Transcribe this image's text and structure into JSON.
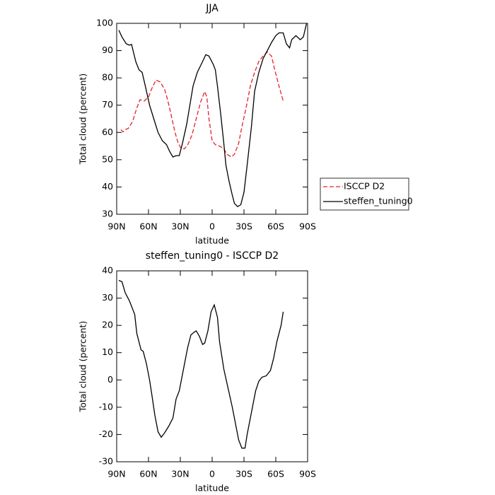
{
  "chart_data": [
    {
      "type": "line",
      "title": "JJA",
      "xlabel": "latitude",
      "ylabel": "Total cloud (percent)",
      "xlim": [
        90,
        -90
      ],
      "ylim": [
        30,
        100
      ],
      "xticks": [
        {
          "value": 90,
          "label": "90N"
        },
        {
          "value": 60,
          "label": "60N"
        },
        {
          "value": 30,
          "label": "30N"
        },
        0,
        {
          "value": -30,
          "label": "30S"
        },
        {
          "value": -60,
          "label": "60S"
        },
        {
          "value": -90,
          "label": "90S"
        }
      ],
      "yticks": [
        30,
        40,
        50,
        60,
        70,
        80,
        90,
        100
      ],
      "legend": "right",
      "series": [
        {
          "name": "ISCCP D2",
          "color": "#e8202a",
          "line_style": "dashed",
          "x": [
            86,
            84,
            82,
            79,
            75,
            71,
            68,
            64,
            60,
            57,
            53,
            49,
            45,
            42,
            39,
            35,
            32,
            29,
            26,
            23,
            19,
            15,
            11,
            7,
            5,
            3,
            0,
            -3,
            -7,
            -11,
            -14,
            -18,
            -21,
            -25,
            -28,
            -32,
            -36,
            -40,
            -44,
            -48,
            -52,
            -56,
            -59,
            -63,
            -67
          ],
          "values": [
            61,
            60.2,
            61,
            61.5,
            64,
            69,
            72,
            71.5,
            73,
            76,
            79.2,
            78.5,
            76,
            72,
            67,
            60,
            56,
            54,
            54,
            55.5,
            59,
            65,
            71,
            75,
            73,
            65,
            57,
            55.5,
            55,
            54,
            52,
            51,
            52,
            56,
            62,
            69,
            77,
            82,
            86,
            88,
            89.5,
            88,
            83,
            77,
            71.5
          ]
        },
        {
          "name": "steffen_tuning0",
          "color": "#000000",
          "line_style": "solid",
          "x": [
            88,
            85,
            81,
            78,
            76,
            72,
            69,
            66,
            63,
            59,
            55,
            51,
            47,
            43,
            40,
            37,
            34,
            31,
            28,
            24,
            21,
            18,
            14,
            9,
            6,
            3,
            -1,
            -3,
            -5,
            -8,
            -11,
            -13,
            -16,
            -19,
            -21,
            -24,
            -27,
            -30,
            -33,
            -37,
            -40,
            -44,
            -48,
            -52,
            -56,
            -60,
            -63,
            -67,
            -70,
            -73,
            -75,
            -79,
            -83,
            -86,
            -89
          ],
          "values": [
            97.5,
            95,
            92.5,
            92,
            92.3,
            86,
            83,
            82,
            77,
            70,
            65,
            60,
            57,
            55.5,
            53,
            51,
            51.5,
            51.5,
            56,
            63,
            70,
            77,
            82,
            86,
            88.5,
            88,
            85,
            83,
            77,
            67,
            56,
            48,
            42,
            37,
            34,
            32.8,
            33.5,
            38,
            48,
            62,
            75,
            82,
            87,
            90,
            93,
            95.5,
            96.5,
            96.5,
            92.5,
            91,
            94,
            95.5,
            94,
            95,
            100
          ]
        }
      ]
    },
    {
      "type": "line",
      "title": "steffen_tuning0 - ISCCP D2",
      "xlabel": "latitude",
      "ylabel": "Total cloud (percent)",
      "xlim": [
        90,
        -90
      ],
      "ylim": [
        -30,
        40
      ],
      "xticks": [
        {
          "value": 90,
          "label": "90N"
        },
        {
          "value": 60,
          "label": "60N"
        },
        {
          "value": 30,
          "label": "30N"
        },
        0,
        {
          "value": -30,
          "label": "30S"
        },
        {
          "value": -60,
          "label": "60S"
        },
        {
          "value": -90,
          "label": "90S"
        }
      ],
      "yticks": [
        -30,
        -20,
        -10,
        0,
        10,
        20,
        30,
        40
      ],
      "series": [
        {
          "color": "#000000",
          "line_style": "solid",
          "x": [
            88,
            85,
            82,
            78,
            73,
            71,
            67,
            65,
            62,
            59,
            57,
            54,
            51,
            48,
            45,
            41,
            37,
            34,
            31,
            29,
            26,
            23,
            20,
            17,
            15,
            12,
            9,
            7,
            4,
            1,
            -2,
            -5,
            -7,
            -11,
            -15,
            -19,
            -23,
            -25,
            -28,
            -31,
            -33,
            -37,
            -41,
            -44,
            -47,
            -51,
            -55,
            -58,
            -61,
            -65,
            -67
          ],
          "values": [
            36.5,
            36,
            32,
            29,
            24,
            17,
            11,
            10.5,
            6,
            0,
            -5,
            -13,
            -19,
            -21,
            -19.5,
            -17,
            -14,
            -7,
            -4,
            0,
            6,
            12,
            16.5,
            17.5,
            18,
            16,
            13,
            13.5,
            18,
            25,
            27.5,
            23,
            14,
            4,
            -3,
            -10,
            -18,
            -22,
            -25,
            -25,
            -20,
            -12,
            -4,
            -0.5,
            1,
            1.5,
            3.5,
            8,
            14,
            20,
            25
          ]
        }
      ]
    }
  ]
}
